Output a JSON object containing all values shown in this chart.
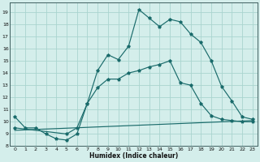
{
  "xlabel": "Humidex (Indice chaleur)",
  "background_color": "#d4eeeb",
  "grid_color": "#aad4cf",
  "line_color": "#1a6b6b",
  "xlim": [
    -0.5,
    23.5
  ],
  "ylim": [
    8.0,
    19.8
  ],
  "xticks": [
    0,
    1,
    2,
    3,
    4,
    5,
    6,
    7,
    8,
    9,
    10,
    11,
    12,
    13,
    14,
    15,
    16,
    17,
    18,
    19,
    20,
    21,
    22,
    23
  ],
  "yticks": [
    8,
    9,
    10,
    11,
    12,
    13,
    14,
    15,
    16,
    17,
    18,
    19
  ],
  "line1_x": [
    0,
    1,
    2,
    3,
    4,
    5,
    6,
    7,
    8,
    9,
    10,
    11,
    12,
    13,
    14,
    15,
    16,
    17,
    18,
    19,
    20,
    21,
    22,
    23
  ],
  "line1_y": [
    10.4,
    9.5,
    9.5,
    9.0,
    8.6,
    8.5,
    9.0,
    11.5,
    14.2,
    15.5,
    15.1,
    16.2,
    19.2,
    18.5,
    17.8,
    18.4,
    18.2,
    17.2,
    16.5,
    15.0,
    12.9,
    11.7,
    10.4,
    10.2
  ],
  "line2_x": [
    0,
    5,
    6,
    7,
    8,
    9,
    10,
    11,
    12,
    13,
    14,
    15,
    16,
    17,
    18,
    19,
    20,
    21,
    22,
    23
  ],
  "line2_y": [
    9.5,
    9.0,
    9.5,
    11.5,
    12.8,
    13.5,
    13.5,
    14.0,
    14.2,
    14.5,
    14.7,
    15.0,
    13.2,
    13.0,
    11.5,
    10.5,
    10.2,
    10.1,
    10.0,
    10.0
  ],
  "line3_x": [
    0,
    23
  ],
  "line3_y": [
    9.3,
    10.1
  ]
}
